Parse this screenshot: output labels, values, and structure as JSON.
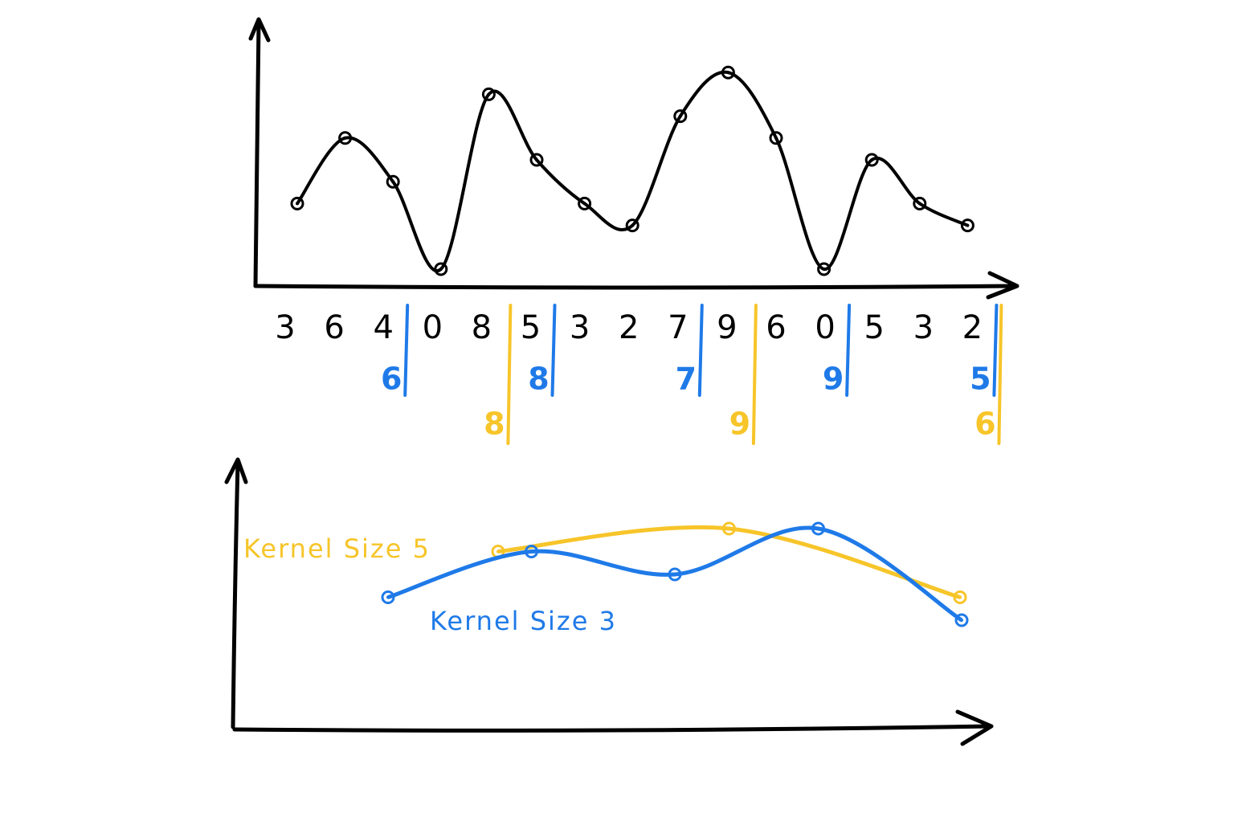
{
  "sequence": [
    3,
    6,
    4,
    0,
    8,
    5,
    3,
    2,
    7,
    9,
    6,
    0,
    5,
    3,
    2
  ],
  "pools": [
    {
      "name": "Kernel Size 3",
      "color": "#1f7ae8",
      "kernel": 3,
      "values": [
        6,
        8,
        7,
        9,
        5
      ]
    },
    {
      "name": "Kernel Size 5",
      "color": "#f7c52a",
      "kernel": 5,
      "values": [
        8,
        9,
        6
      ]
    }
  ]
}
